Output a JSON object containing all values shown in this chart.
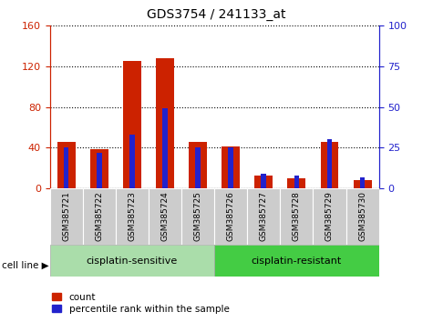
{
  "title": "GDS3754 / 241133_at",
  "samples": [
    "GSM385721",
    "GSM385722",
    "GSM385723",
    "GSM385724",
    "GSM385725",
    "GSM385726",
    "GSM385727",
    "GSM385728",
    "GSM385729",
    "GSM385730"
  ],
  "count_values": [
    46,
    39,
    125,
    128,
    46,
    41,
    13,
    10,
    46,
    8
  ],
  "percentile_values": [
    25,
    22,
    33,
    49,
    25,
    25,
    9,
    8,
    30,
    7
  ],
  "groups": [
    {
      "label": "cisplatin-sensitive",
      "start": 0,
      "end": 4,
      "color": "#aaddaa"
    },
    {
      "label": "cisplatin-resistant",
      "start": 5,
      "end": 9,
      "color": "#44cc44"
    }
  ],
  "cell_line_label": "cell line",
  "ylim_left": [
    0,
    160
  ],
  "ylim_right": [
    0,
    100
  ],
  "yticks_left": [
    0,
    40,
    80,
    120,
    160
  ],
  "yticks_right": [
    0,
    25,
    50,
    75,
    100
  ],
  "bar_color_red": "#cc2200",
  "bar_color_blue": "#2222cc",
  "legend_count": "count",
  "legend_percentile": "percentile rank within the sample",
  "tick_label_color_left": "#cc2200",
  "tick_label_color_right": "#2222cc",
  "bar_width": 0.55,
  "grid_color": "#000000",
  "background_plot": "#ffffff",
  "xlabel_area_color": "#cccccc"
}
